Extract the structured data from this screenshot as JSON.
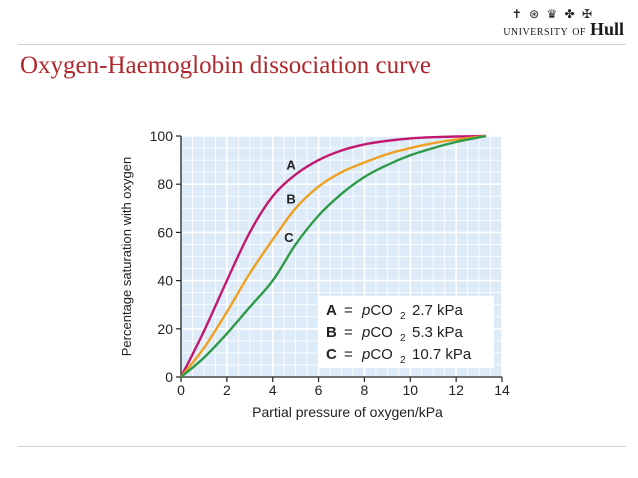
{
  "logo": {
    "crest": "✝ ⊛ ♛ ✤ ✠",
    "university": "UNIVERSITY",
    "of": "OF",
    "hull": "Hull"
  },
  "slide": {
    "title": "Oxygen-Haemoglobin dissociation curve"
  },
  "chart_data": {
    "type": "line",
    "xlabel": "Partial pressure of oxygen/kPa",
    "ylabel": "Percentage saturation with oxygen",
    "xlim": [
      0,
      14
    ],
    "ylim": [
      0,
      100
    ],
    "xticks": [
      0,
      2,
      4,
      6,
      8,
      10,
      12,
      14
    ],
    "yticks": [
      0,
      20,
      40,
      60,
      80,
      100
    ],
    "grid": true,
    "series": [
      {
        "name": "A",
        "color": "#c2186f",
        "x": [
          0,
          1,
          2,
          3,
          4,
          5,
          6,
          7,
          8,
          9,
          10,
          11,
          12,
          13.3
        ],
        "y": [
          0,
          19,
          40,
          60,
          75,
          84,
          90,
          94,
          96.5,
          98,
          99,
          99.5,
          99.8,
          100
        ]
      },
      {
        "name": "B",
        "color": "#f0a020",
        "x": [
          0,
          1,
          2,
          3,
          4,
          5,
          6,
          7,
          8,
          9,
          10,
          11,
          12,
          13.3
        ],
        "y": [
          0,
          12,
          27,
          43,
          57,
          70,
          79,
          85,
          89,
          92.5,
          95,
          97,
          98.5,
          100
        ]
      },
      {
        "name": "C",
        "color": "#2e9a47",
        "x": [
          0,
          1,
          2,
          3,
          4,
          5,
          6,
          7,
          8,
          9,
          10,
          11,
          12,
          13.3
        ],
        "y": [
          0,
          8,
          18,
          29,
          40,
          55,
          67,
          76,
          83,
          88,
          92,
          95,
          97.5,
          100
        ]
      }
    ],
    "curve_labels": [
      {
        "text": "A",
        "x": 4.8,
        "y": 86
      },
      {
        "text": "B",
        "x": 4.8,
        "y": 72
      },
      {
        "text": "C",
        "x": 4.7,
        "y": 56
      }
    ],
    "legend": {
      "placement": "bottom-right",
      "entries": [
        {
          "key": "A",
          "eq": "=",
          "label": "pCO",
          "sub": "2",
          "value": "2.7 kPa"
        },
        {
          "key": "B",
          "eq": "=",
          "label": "pCO",
          "sub": "2",
          "value": "5.3 kPa"
        },
        {
          "key": "C",
          "eq": "=",
          "label": "pCO",
          "sub": "2",
          "value": "10.7 kPa"
        }
      ]
    },
    "plot_background": "#dcebf7",
    "grid_color": "#ffffff"
  }
}
